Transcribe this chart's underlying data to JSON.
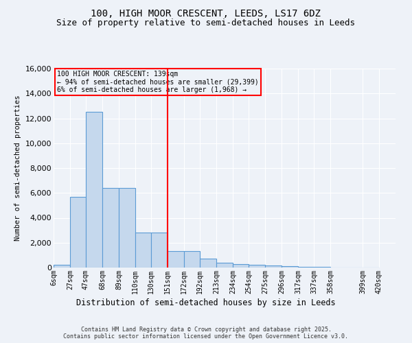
{
  "title_line1": "100, HIGH MOOR CRESCENT, LEEDS, LS17 6DZ",
  "title_line2": "Size of property relative to semi-detached houses in Leeds",
  "xlabel": "Distribution of semi-detached houses by size in Leeds",
  "ylabel": "Number of semi-detached properties",
  "annotation_line1": "100 HIGH MOOR CRESCENT: 139sqm",
  "annotation_line2": "← 94% of semi-detached houses are smaller (29,399)",
  "annotation_line3": "6% of semi-detached houses are larger (1,968) →",
  "footer_line1": "Contains HM Land Registry data © Crown copyright and database right 2025.",
  "footer_line2": "Contains public sector information licensed under the Open Government Licence v3.0.",
  "bin_labels": [
    "6sqm",
    "27sqm",
    "47sqm",
    "68sqm",
    "89sqm",
    "110sqm",
    "130sqm",
    "151sqm",
    "172sqm",
    "192sqm",
    "213sqm",
    "234sqm",
    "254sqm",
    "275sqm",
    "296sqm",
    "317sqm",
    "337sqm",
    "358sqm",
    "399sqm",
    "420sqm"
  ],
  "bin_edges": [
    6,
    27,
    47,
    68,
    89,
    110,
    130,
    151,
    172,
    192,
    213,
    234,
    254,
    275,
    296,
    317,
    337,
    358,
    399,
    420
  ],
  "bar_heights": [
    200,
    5700,
    12500,
    6400,
    6400,
    2800,
    2800,
    1350,
    1350,
    700,
    400,
    300,
    200,
    150,
    100,
    50,
    30,
    15,
    5,
    2
  ],
  "bar_color": "#c5d8ed",
  "bar_edge_color": "#5b9bd5",
  "vline_x": 151,
  "vline_color": "red",
  "ylim": [
    0,
    16000
  ],
  "yticks": [
    0,
    2000,
    4000,
    6000,
    8000,
    10000,
    12000,
    14000,
    16000
  ],
  "bg_color": "#eef2f8",
  "grid_color": "#ffffff",
  "annotation_box_color": "red",
  "title_fontsize": 10,
  "subtitle_fontsize": 9
}
